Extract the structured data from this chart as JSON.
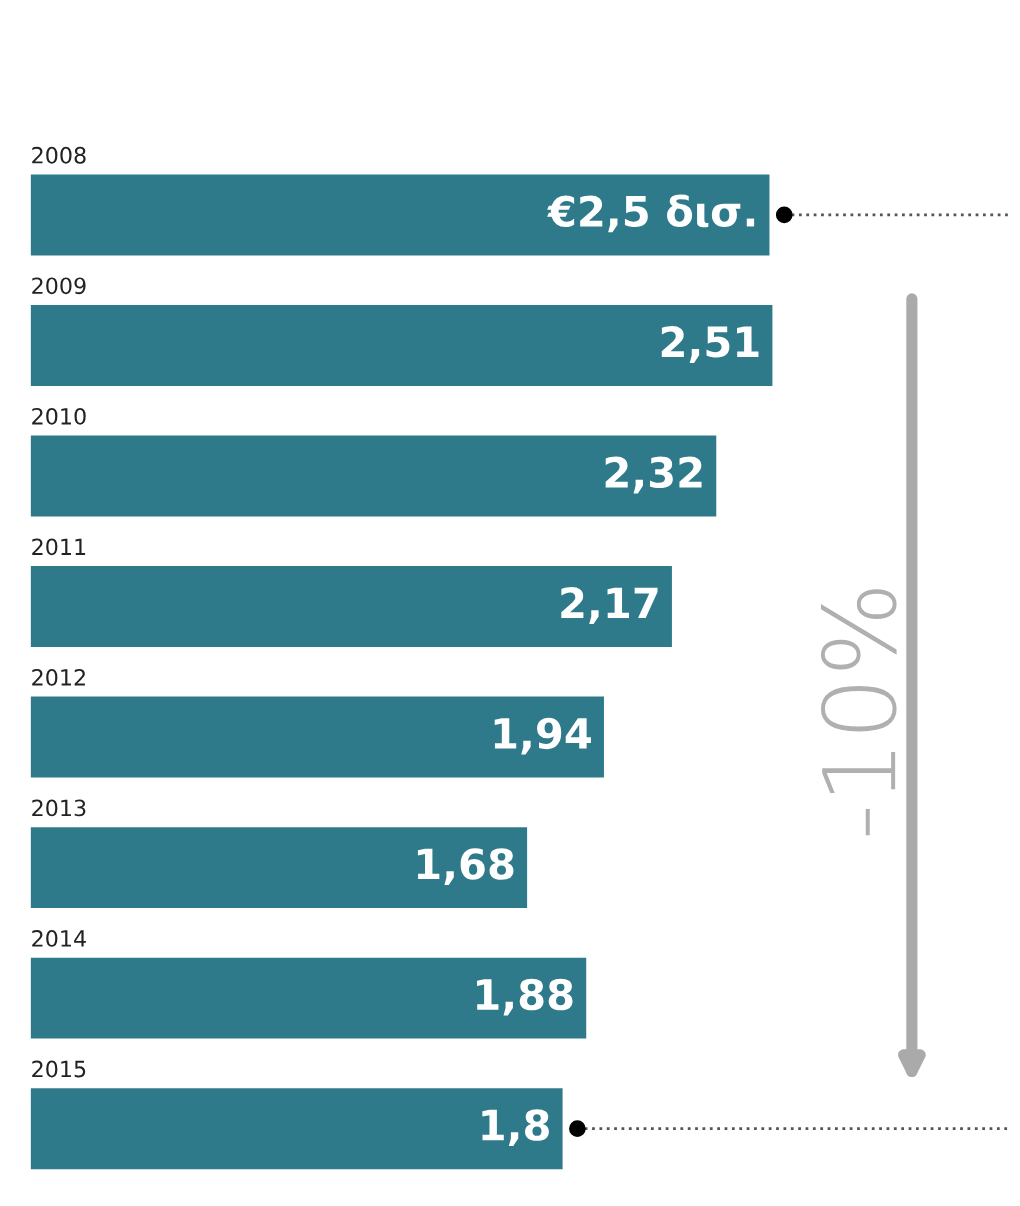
{
  "chart_data": {
    "type": "bar",
    "orientation": "horizontal",
    "categories": [
      "2008",
      "2009",
      "2010",
      "2011",
      "2012",
      "2013",
      "2014",
      "2015"
    ],
    "values": [
      2.5,
      2.51,
      2.32,
      2.17,
      1.94,
      1.68,
      1.88,
      1.8
    ],
    "value_labels": [
      "€2,5 δισ.",
      "2,51",
      "2,32",
      "2,17",
      "1,94",
      "1,68",
      "1,88",
      "1,8"
    ],
    "color": "#2f7a8a",
    "annotations": [
      "-10%"
    ]
  }
}
